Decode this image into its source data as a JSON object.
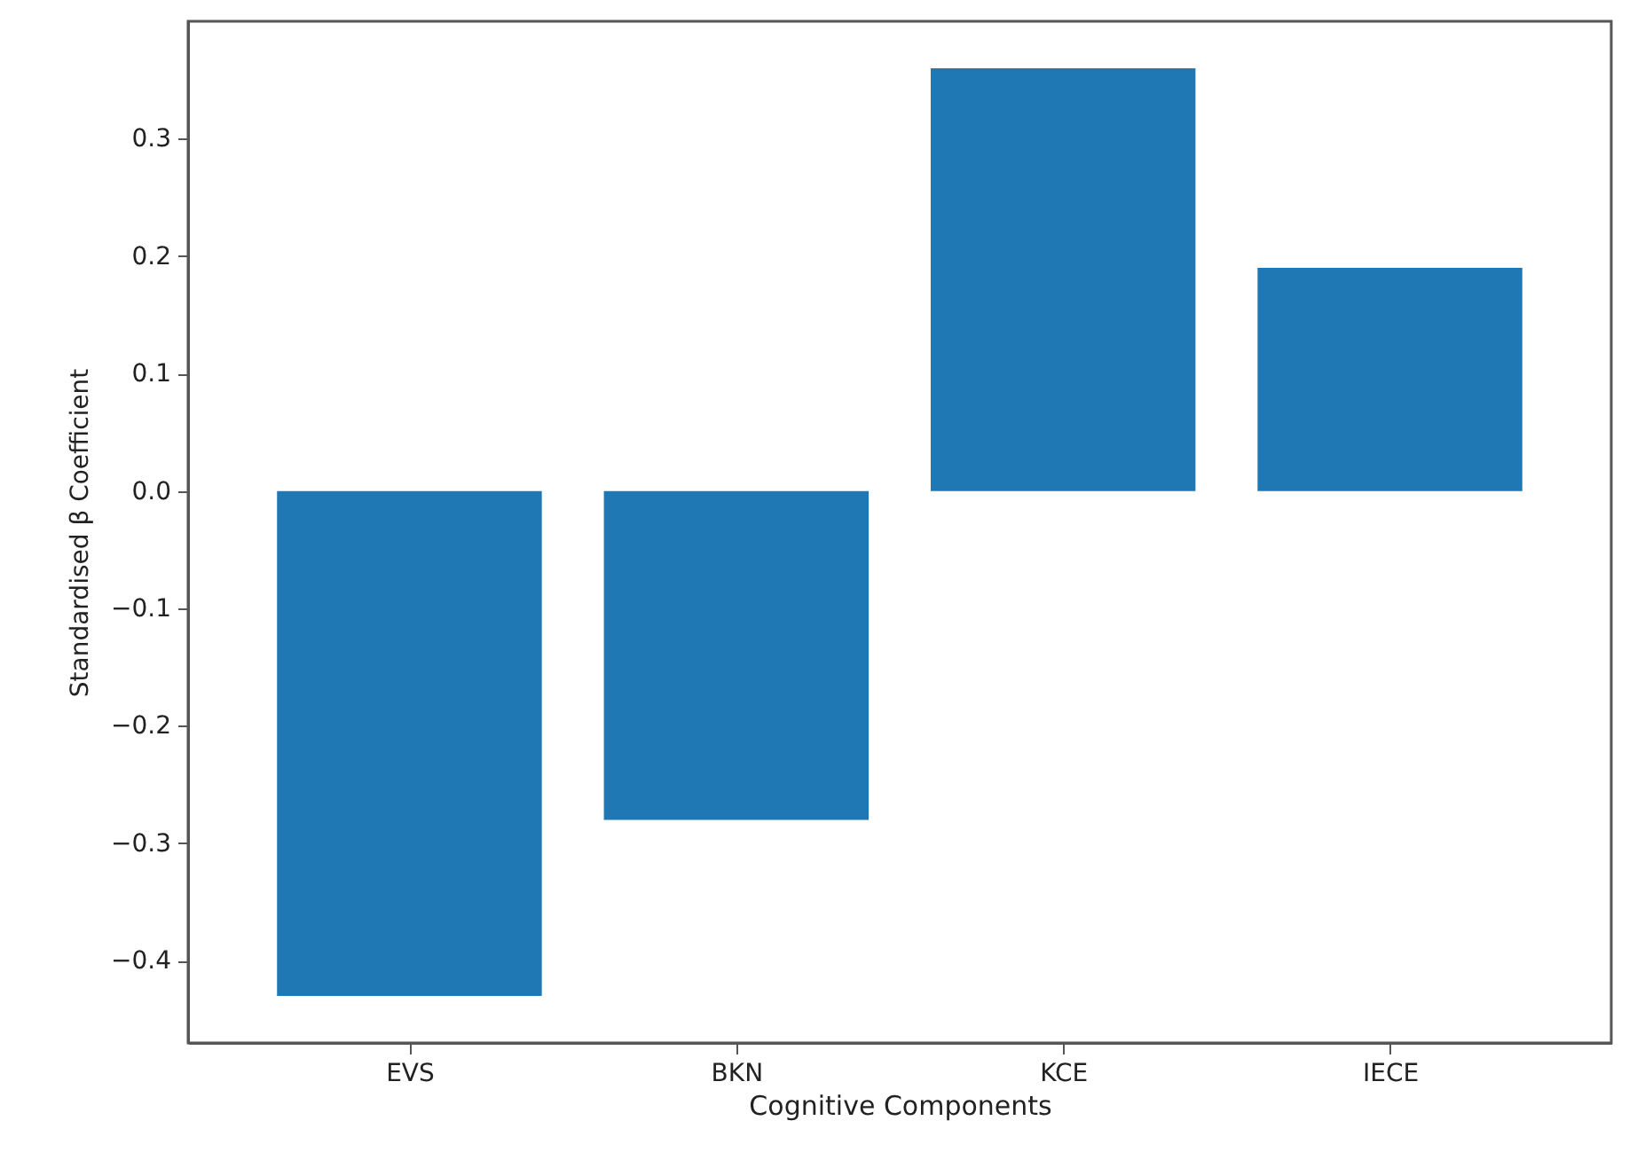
{
  "chart_data": {
    "type": "bar",
    "xlabel": "Cognitive Components",
    "ylabel": "Standardised β Coefficient",
    "categories": [
      "EVS",
      "BKN",
      "KCE",
      "IECE"
    ],
    "values": [
      -0.43,
      -0.28,
      0.36,
      0.19
    ],
    "color": "#1f77b4",
    "ylim": [
      -0.47,
      0.4
    ],
    "yticks": [
      -0.4,
      -0.3,
      -0.2,
      -0.1,
      {
        "value": 0,
        "label": "0.0"
      },
      0.1,
      0.2,
      0.3
    ],
    "grid": false
  }
}
